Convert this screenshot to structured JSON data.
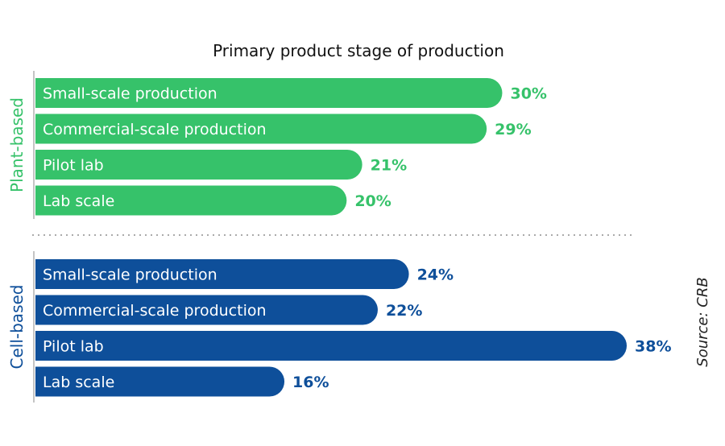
{
  "chart_data": {
    "type": "bar",
    "orientation": "horizontal",
    "title": "Primary product stage of production",
    "source": "Source: CRB",
    "value_suffix": "%",
    "groups": [
      {
        "name": "Plant-based",
        "color": "#36c26a",
        "categories": [
          "Small-scale production",
          "Commercial-scale production",
          "Pilot lab",
          "Lab scale"
        ],
        "values": [
          30,
          29,
          21,
          20
        ]
      },
      {
        "name": "Cell-based",
        "color": "#0e4f9a",
        "categories": [
          "Small-scale production",
          "Commercial-scale production",
          "Pilot lab",
          "Lab scale"
        ],
        "values": [
          24,
          22,
          38,
          16
        ]
      }
    ],
    "xlim": [
      0,
      38
    ]
  }
}
